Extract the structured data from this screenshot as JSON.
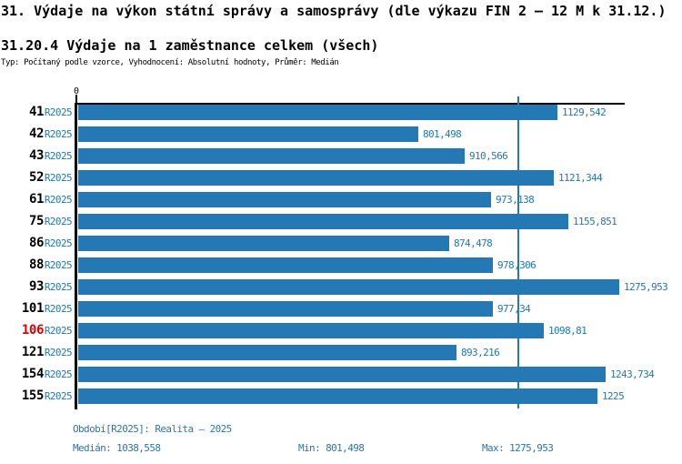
{
  "header": {
    "title": "31. Výdaje na výkon státní správy a samosprávy (dle výkazu FIN 2 – 12 M k 31.12.)",
    "subtitle": "31.20.4 Výdaje na 1 zaměstnance celkem (všech)",
    "meta": "Typ: Počítaný podle vzorce, Vyhodnocení: Absolutní hodnoty, Průměr: Medián"
  },
  "chart_data": {
    "type": "bar",
    "orientation": "horizontal",
    "title": "31.20.4 Výdaje na 1 zaměstnance celkem (všech)",
    "x_origin_label": "0",
    "series_label": "R2025",
    "categories": [
      "41",
      "42",
      "43",
      "52",
      "61",
      "75",
      "86",
      "88",
      "93",
      "101",
      "106",
      "121",
      "154",
      "155"
    ],
    "values": [
      1129.542,
      801.498,
      910.566,
      1121.344,
      973.138,
      1155.851,
      874.478,
      978.306,
      1275.953,
      977.34,
      1098.81,
      893.216,
      1243.734,
      1225
    ],
    "value_labels": [
      "1129,542",
      "801,498",
      "910,566",
      "1121,344",
      "973,138",
      "1155,851",
      "874,478",
      "978,306",
      "1275,953",
      "977,34",
      "1098,81",
      "893,216",
      "1243,734",
      "1225"
    ],
    "highlighted_category": "106",
    "xlim": [
      0,
      1289
    ],
    "median_value": 1038.558,
    "grid": false,
    "legend": false,
    "colors": {
      "bar": "#2478b4",
      "median_line": "#2478b4",
      "blue_text": "#2277b4",
      "highlight_text": "#e00000",
      "axis": "#000000"
    }
  },
  "footer": {
    "period": "Období[R2025]: Realita – 2025",
    "median": "Medián: 1038,558",
    "min": "Min: 801,498",
    "max": "Max: 1275,953"
  }
}
